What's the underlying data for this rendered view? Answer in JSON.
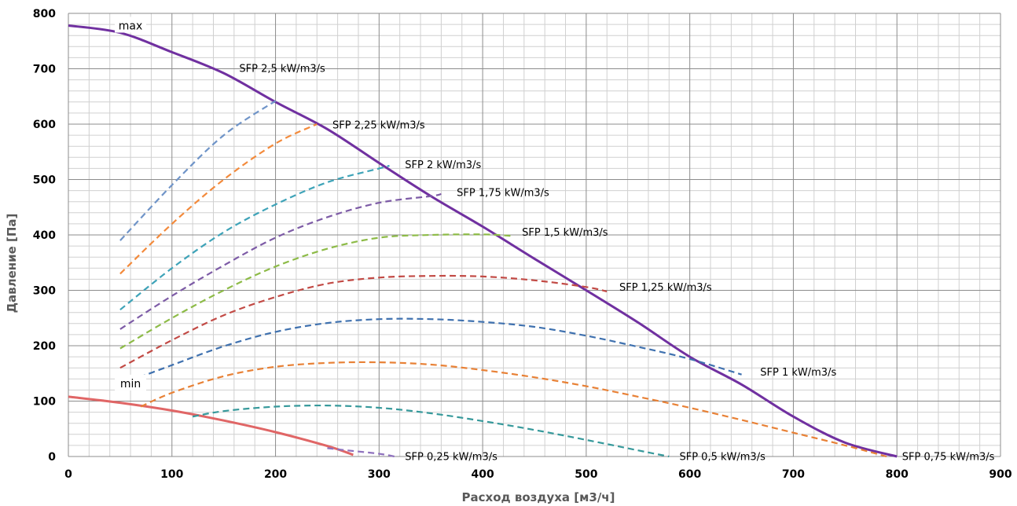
{
  "chart_data": {
    "type": "line",
    "title": "",
    "xlabel": "Расход воздуха [м3/ч]",
    "ylabel": "Давление [Па]",
    "xlim": [
      0,
      900
    ],
    "ylim": [
      0,
      800
    ],
    "x_ticks": [
      "0",
      "100",
      "200",
      "300",
      "400",
      "500",
      "600",
      "700",
      "800",
      "900"
    ],
    "y_ticks": [
      "0",
      "100",
      "200",
      "300",
      "400",
      "500",
      "600",
      "700",
      "800"
    ],
    "grid": true,
    "boundary_curves": [
      {
        "label": "max",
        "color": "#7030A0",
        "points": [
          [
            0,
            778
          ],
          [
            50,
            765
          ],
          [
            100,
            730
          ],
          [
            150,
            692
          ],
          [
            200,
            640
          ],
          [
            250,
            591
          ],
          [
            300,
            530
          ],
          [
            350,
            470
          ],
          [
            400,
            415
          ],
          [
            450,
            357
          ],
          [
            500,
            300
          ],
          [
            550,
            242
          ],
          [
            600,
            180
          ],
          [
            650,
            130
          ],
          [
            700,
            72
          ],
          [
            750,
            25
          ],
          [
            800,
            0
          ]
        ]
      },
      {
        "label": "min",
        "color": "#E06666",
        "points": [
          [
            0,
            108
          ],
          [
            50,
            97
          ],
          [
            100,
            83
          ],
          [
            150,
            65
          ],
          [
            200,
            44
          ],
          [
            250,
            19
          ],
          [
            275,
            3
          ]
        ]
      }
    ],
    "series": [
      {
        "name": "SFP 2,5 kW/m3/s",
        "color": "#6F94C8",
        "x": [
          50,
          100,
          150,
          200
        ],
        "y": [
          390,
          490,
          580,
          642
        ]
      },
      {
        "name": "SFP 2,25 kW/m3/s",
        "color": "#F38A3B",
        "x": [
          50,
          100,
          150,
          200,
          240
        ],
        "y": [
          330,
          420,
          500,
          565,
          600
        ]
      },
      {
        "name": "SFP 2 kW/m3/s",
        "color": "#3EA3B8",
        "x": [
          50,
          100,
          150,
          200,
          250,
          300,
          310
        ],
        "y": [
          265,
          340,
          405,
          455,
          495,
          520,
          525
        ]
      },
      {
        "name": "SFP 1,75 kW/m3/s",
        "color": "#7D5BA6",
        "x": [
          50,
          100,
          150,
          200,
          250,
          300,
          350,
          360
        ],
        "y": [
          230,
          290,
          345,
          395,
          432,
          458,
          470,
          474
        ]
      },
      {
        "name": "SFP 1,5 kW/m3/s",
        "color": "#8DBB47",
        "x": [
          50,
          100,
          150,
          200,
          250,
          300,
          350,
          400,
          430
        ],
        "y": [
          195,
          250,
          300,
          343,
          375,
          395,
          400,
          401,
          398
        ]
      },
      {
        "name": "SFP 1,25 kW/m3/s",
        "color": "#C24A45",
        "x": [
          50,
          100,
          150,
          200,
          250,
          300,
          350,
          400,
          450,
          500,
          520
        ],
        "y": [
          160,
          210,
          255,
          288,
          312,
          323,
          326,
          325,
          318,
          306,
          298
        ]
      },
      {
        "name": "SFP 1 kW/m3/s",
        "color": "#3F71AF",
        "x": [
          50,
          100,
          150,
          200,
          250,
          300,
          350,
          400,
          450,
          500,
          550,
          600,
          650
        ],
        "y": [
          130,
          165,
          199,
          225,
          241,
          248,
          248,
          243,
          234,
          218,
          198,
          176,
          148
        ]
      },
      {
        "name": "SFP 0,75 kW/m3/s",
        "color": "#E88136",
        "x": [
          70,
          100,
          150,
          200,
          250,
          300,
          350,
          400,
          450,
          500,
          550,
          600,
          650,
          700,
          750,
          790
        ],
        "y": [
          90,
          115,
          145,
          162,
          169,
          170,
          166,
          156,
          143,
          127,
          108,
          88,
          66,
          43,
          20,
          0
        ]
      },
      {
        "name": "SFP 0,5 kW/m3/s",
        "color": "#36999B",
        "x": [
          120,
          150,
          200,
          250,
          300,
          350,
          400,
          450,
          500,
          550,
          580
        ],
        "y": [
          72,
          82,
          90,
          92,
          88,
          78,
          64,
          48,
          30,
          11,
          0
        ]
      },
      {
        "name": "SFP 0,25 kW/m3/s",
        "color": "#8F72BE",
        "x": [
          250,
          275,
          300,
          315
        ],
        "y": [
          15,
          10,
          5,
          0
        ]
      }
    ],
    "series_labels": [
      {
        "text": "SFP 2,5 kW/m3/s",
        "x": 165,
        "y": 700
      },
      {
        "text": "SFP 2,25 kW/m3/s",
        "x": 255,
        "y": 598
      },
      {
        "text": "SFP 2 kW/m3/s",
        "x": 325,
        "y": 526
      },
      {
        "text": "SFP 1,75 kW/m3/s",
        "x": 375,
        "y": 476
      },
      {
        "text": "SFP 1,5 kW/m3/s",
        "x": 438,
        "y": 404
      },
      {
        "text": "SFP 1,25 kW/m3/s",
        "x": 532,
        "y": 305
      },
      {
        "text": "SFP 1 kW/m3/s",
        "x": 668,
        "y": 152
      },
      {
        "text": "SFP 0,75 kW/m3/s",
        "x": 805,
        "y": -1
      },
      {
        "text": "SFP 0,5 kW/m3/s",
        "x": 590,
        "y": -1
      },
      {
        "text": "SFP 0,25 kW/m3/s",
        "x": 325,
        "y": -1
      }
    ]
  }
}
